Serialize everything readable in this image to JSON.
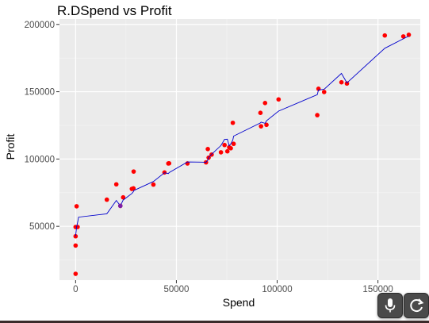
{
  "chart_data": {
    "type": "scatter",
    "title": "R.DSpend vs Profit",
    "xlabel": "Spend",
    "ylabel": "Profit",
    "xlim": [
      -8000,
      171000
    ],
    "ylim": [
      10000,
      204000
    ],
    "xticks": [
      0,
      50000,
      100000,
      150000
    ],
    "yticks": [
      50000,
      100000,
      150000,
      200000
    ],
    "tick_labels_x": [
      "0",
      "50000",
      "100000",
      "150000"
    ],
    "tick_labels_y": [
      "50000",
      "100000",
      "150000",
      "200000"
    ],
    "grid": true,
    "legend": "none",
    "point_color": "#ff0000",
    "line_color": "#0000cd",
    "background": "#ebebeb",
    "series": [
      {
        "type": "points",
        "x": [
          0,
          0,
          0,
          0,
          500,
          1000,
          15500,
          20200,
          22200,
          23600,
          27900,
          28700,
          28800,
          38600,
          44100,
          46000,
          46400,
          55500,
          64700,
          65600,
          66000,
          67500,
          72100,
          73900,
          75300,
          76200,
          77000,
          78000,
          78400,
          91700,
          92000,
          94000,
          94700,
          100700,
          119900,
          120500,
          123300,
          131900,
          134600,
          153400,
          162600,
          165300
        ],
        "y": [
          14700,
          35700,
          42600,
          49500,
          64900,
          49500,
          69800,
          81200,
          65200,
          71500,
          77800,
          78200,
          90700,
          81000,
          90000,
          96700,
          96800,
          96700,
          97500,
          107400,
          101000,
          103300,
          105000,
          110400,
          105700,
          108700,
          108000,
          126900,
          111300,
          134300,
          124300,
          141600,
          125400,
          144300,
          132600,
          152200,
          149800,
          157000,
          156100,
          191800,
          191100,
          192300
        ]
      },
      {
        "type": "line",
        "x": [
          0,
          500,
          1000,
          1500,
          15500,
          20200,
          22200,
          23600,
          27900,
          28700,
          28800,
          38600,
          44100,
          46000,
          46400,
          55500,
          64700,
          65600,
          66000,
          67500,
          72100,
          73900,
          75300,
          76200,
          77000,
          78000,
          78400,
          91700,
          92000,
          94000,
          94700,
          100700,
          119900,
          120500,
          123300,
          131900,
          134600,
          153400,
          162600,
          165300
        ],
        "y": [
          42600,
          49500,
          53000,
          56800,
          59300,
          69200,
          65200,
          69500,
          74400,
          75800,
          76500,
          83300,
          89800,
          89200,
          89900,
          97800,
          97600,
          99200,
          101200,
          103600,
          110000,
          114600,
          114700,
          109900,
          111300,
          114100,
          117000,
          126800,
          127400,
          126500,
          128400,
          135600,
          147800,
          151300,
          151800,
          163600,
          156600,
          182300,
          189300,
          191300
        ]
      }
    ],
    "points_dark": [
      {
        "x": 22200,
        "y": 65200,
        "color": "#7a1fa8"
      }
    ]
  },
  "ui": {
    "mic_icon": "microphone-icon",
    "reload_icon": "reload-icon"
  }
}
